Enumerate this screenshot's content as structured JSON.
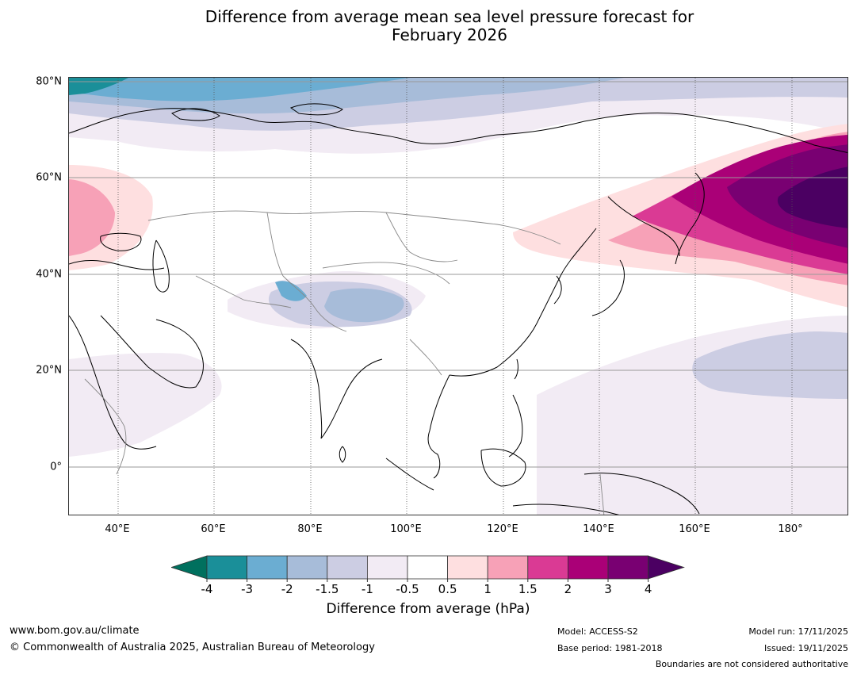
{
  "title": {
    "line1": "Difference from average mean sea level pressure forecast for",
    "line2": "February 2026"
  },
  "map": {
    "lat_labels": [
      "80°N",
      "60°N",
      "40°N",
      "20°N",
      "0°"
    ],
    "lon_labels": [
      "40°E",
      "60°E",
      "80°E",
      "100°E",
      "120°E",
      "140°E",
      "160°E",
      "180°"
    ]
  },
  "colorbar": {
    "tick_labels": [
      "-4",
      "-3",
      "-2",
      "-1.5",
      "-1",
      "-0.5",
      "0.5",
      "1",
      "1.5",
      "2",
      "3",
      "4"
    ],
    "label": "Difference from average (hPa)",
    "colors": [
      "#00705e",
      "#1a8f99",
      "#6badd2",
      "#a7bcd9",
      "#cccde3",
      "#f2ebf4",
      "#ffffff",
      "#fedfe0",
      "#f7a1b7",
      "#da3a94",
      "#aa0077",
      "#790072",
      "#4b0062"
    ]
  },
  "footer": {
    "url": "www.bom.gov.au/climate",
    "copyright": "© Commonwealth of Australia 2025, Australian Bureau of Meteorology",
    "model": "Model: ACCESS-S2",
    "base_period": "Base period: 1981-2018",
    "model_run": "Model run: 17/11/2025",
    "issued": "Issued: 19/11/2025",
    "disclaimer": "Boundaries are not considered authoritative"
  }
}
